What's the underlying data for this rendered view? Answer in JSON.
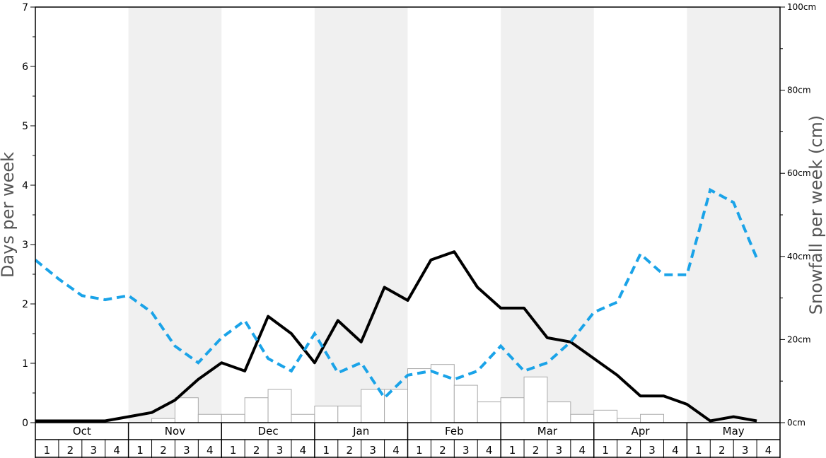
{
  "chart_data": {
    "type": "bar",
    "left_axis": {
      "label": "Days per week",
      "ylim": [
        0,
        7
      ],
      "ticks": [
        "0",
        "1",
        "2",
        "3",
        "4",
        "5",
        "6",
        "7"
      ]
    },
    "right_axis": {
      "label": "Snowfall per week (cm)",
      "ylim": [
        0,
        100
      ],
      "ticks": [
        "0cm",
        "20cm",
        "40cm",
        "60cm",
        "80cm",
        "100cm"
      ]
    },
    "months": [
      "Oct",
      "Nov",
      "Dec",
      "Jan",
      "Feb",
      "Mar",
      "Apr",
      "May"
    ],
    "weeks": [
      "1",
      "2",
      "3",
      "4"
    ],
    "shaded_months": [
      "Nov",
      "Jan",
      "Mar",
      "May"
    ],
    "colors": {
      "bars_fill": "#ffffff",
      "bars_stroke": "#aaaaaa",
      "solid_line": "#000000",
      "dashed_line": "#1aa3e8",
      "shade": "#f0f0f0"
    },
    "series": [
      {
        "type": "bar",
        "axis": "left",
        "values": [
          0,
          0,
          0,
          0,
          0,
          0.07,
          0.42,
          0.14,
          0.14,
          0.42,
          0.56,
          0.14,
          0.28,
          0.28,
          0.56,
          0.56,
          0.91,
          0.98,
          0.63,
          0.35,
          0.42,
          0.77,
          0.35,
          0.14,
          0.21,
          0.07,
          0.14,
          0,
          0,
          0,
          0,
          0
        ]
      },
      {
        "type": "line",
        "style": "solid",
        "axis": "left",
        "values": [
          0.03,
          0.03,
          0.03,
          0.03,
          0.1,
          0.17,
          0.38,
          0.73,
          1.01,
          0.87,
          1.79,
          1.5,
          1.01,
          1.72,
          1.36,
          2.28,
          2.06,
          2.74,
          2.88,
          2.28,
          1.93,
          1.93,
          1.43,
          1.36,
          1.08,
          0.8,
          0.45,
          0.45,
          0.31,
          0.03,
          0.1,
          0.03
        ]
      },
      {
        "type": "line",
        "style": "dashed",
        "axis": "left",
        "values": [
          2.74,
          2.42,
          2.14,
          2.07,
          2.14,
          1.86,
          1.29,
          1.01,
          1.43,
          1.72,
          1.08,
          0.87,
          1.5,
          0.84,
          1.01,
          0.42,
          0.8,
          0.87,
          0.73,
          0.87,
          1.29,
          0.87,
          1.01,
          1.36,
          1.86,
          2.03,
          2.84,
          2.49,
          2.49,
          3.92,
          3.71,
          2.77
        ]
      }
    ]
  }
}
